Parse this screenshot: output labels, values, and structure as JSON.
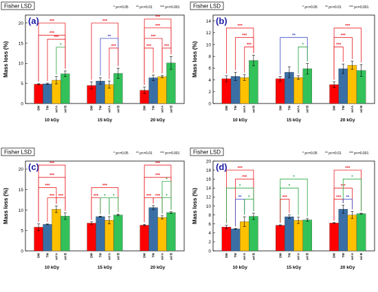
{
  "colors": {
    "DW": "#ff0000",
    "TW": "#3a6fa6",
    "sol A": "#ffc000",
    "sol B": "#33c15a",
    "red": "#e8191f",
    "blue": "#3848c8",
    "green": "#23a33a"
  },
  "legend": [
    "* p<=0.05",
    "** p<=0.01",
    "*** p<=0.001"
  ],
  "chart_data": [
    {
      "type": "bar",
      "panel_label": "(a)",
      "title": "Fisher LSD",
      "ylabel": "Mass loss (%)",
      "ylim": [
        0,
        22
      ],
      "yticks": [
        0,
        5,
        10,
        15,
        20
      ],
      "groups": [
        "10 kGy",
        "15 kGy",
        "20 kGy"
      ],
      "categories": [
        "DW",
        "TW",
        "sol A",
        "sol B"
      ],
      "values": [
        [
          4.8,
          4.9,
          5.8,
          7.4
        ],
        [
          4.5,
          5.6,
          4.7,
          7.5
        ],
        [
          3.3,
          6.4,
          6.7,
          10.1
        ]
      ],
      "errors": [
        [
          0.15,
          0.2,
          0.9,
          0.7
        ],
        [
          0.9,
          0.8,
          0.9,
          1.3
        ],
        [
          0.8,
          0.7,
          0.3,
          1.6
        ]
      ],
      "significance": [
        {
          "group": 0,
          "from": 2,
          "to": 3,
          "label": "*",
          "color": "green",
          "level": 14.0
        },
        {
          "group": 0,
          "from": 0,
          "to": 3,
          "label": "***",
          "color": "red",
          "level": 17.0
        },
        {
          "group": 0,
          "from": 1,
          "to": 3,
          "label": "***",
          "color": "red",
          "level": 16.0
        },
        {
          "group": 0,
          "from": 0,
          "to": 3,
          "label": "***",
          "color": "red",
          "level": 20.0
        },
        {
          "group": 1,
          "from": 0,
          "to": 3,
          "label": "***",
          "color": "red",
          "level": 20.0
        },
        {
          "group": 1,
          "from": 1,
          "to": 3,
          "label": "**",
          "color": "blue",
          "level": 16.2
        },
        {
          "group": 1,
          "from": 2,
          "to": 3,
          "label": "***",
          "color": "red",
          "level": 13.8
        },
        {
          "group": 2,
          "from": 0,
          "to": 3,
          "label": "***",
          "color": "red",
          "level": 21.0
        },
        {
          "group": 2,
          "from": 0,
          "to": 2,
          "label": "***",
          "color": "red",
          "level": 16.2
        },
        {
          "group": 2,
          "from": 0,
          "to": 3,
          "label": "***",
          "color": "red",
          "level": 18.8
        },
        {
          "group": 2,
          "from": 0,
          "to": 1,
          "label": "***",
          "color": "red",
          "level": 13.8
        },
        {
          "group": 2,
          "from": 2,
          "to": 3,
          "label": "***",
          "color": "red",
          "level": 13.8
        }
      ]
    },
    {
      "type": "bar",
      "panel_label": "(b)",
      "title": "Fisher LSD",
      "ylabel": "Mass loss (%)",
      "ylim": [
        0,
        15
      ],
      "yticks": [
        0,
        2,
        4,
        6,
        8,
        10,
        12,
        14
      ],
      "groups": [
        "10 kGy",
        "15 kGy",
        "20 kGy"
      ],
      "categories": [
        "DW",
        "TW",
        "sol A",
        "sol B"
      ],
      "values": [
        [
          4.2,
          4.6,
          4.4,
          7.3
        ],
        [
          4.2,
          5.3,
          4.4,
          5.9
        ],
        [
          3.2,
          5.9,
          6.5,
          5.6
        ]
      ],
      "errors": [
        [
          0.5,
          0.7,
          0.5,
          0.9
        ],
        [
          0.4,
          0.9,
          0.3,
          0.9
        ],
        [
          0.5,
          0.8,
          0.7,
          1.0
        ]
      ],
      "significance": [
        {
          "group": 0,
          "from": 0,
          "to": 3,
          "label": "***",
          "color": "red",
          "level": 12.8
        },
        {
          "group": 0,
          "from": 1,
          "to": 3,
          "label": "***",
          "color": "red",
          "level": 11.2
        },
        {
          "group": 0,
          "from": 2,
          "to": 3,
          "label": "***",
          "color": "red",
          "level": 9.6
        },
        {
          "group": 1,
          "from": 0,
          "to": 3,
          "label": "**",
          "color": "blue",
          "level": 11.2
        },
        {
          "group": 1,
          "from": 2,
          "to": 3,
          "label": "*",
          "color": "green",
          "level": 9.6
        },
        {
          "group": 2,
          "from": 0,
          "to": 3,
          "label": "***",
          "color": "red",
          "level": 12.8
        },
        {
          "group": 2,
          "from": 0,
          "to": 2,
          "label": "***",
          "color": "red",
          "level": 11.2
        },
        {
          "group": 2,
          "from": 0,
          "to": 1,
          "label": "***",
          "color": "red",
          "level": 9.6
        }
      ]
    },
    {
      "type": "bar",
      "panel_label": "(c)",
      "title": "Fisher LSD",
      "ylabel": "Mass loss (%)",
      "ylim": [
        0,
        22
      ],
      "yticks": [
        0,
        5,
        10,
        15,
        20
      ],
      "groups": [
        "10 kGy",
        "15 kGy",
        "20 kGy"
      ],
      "categories": [
        "DW",
        "TW",
        "sol A",
        "sol B"
      ],
      "values": [
        [
          5.8,
          6.5,
          10.2,
          8.5
        ],
        [
          6.8,
          8.4,
          7.5,
          8.8
        ],
        [
          6.3,
          10.6,
          8.2,
          9.4
        ]
      ],
      "errors": [
        [
          0.8,
          0.1,
          0.8,
          0.8
        ],
        [
          0.3,
          0.1,
          0.9,
          0.2
        ],
        [
          0.2,
          0.5,
          0.4,
          0.2
        ]
      ],
      "significance": [
        {
          "group": 0,
          "from": 0,
          "to": 3,
          "label": "***",
          "color": "red",
          "level": 21.0
        },
        {
          "group": 0,
          "from": 0,
          "to": 3,
          "label": "***",
          "color": "red",
          "level": 18.0
        },
        {
          "group": 0,
          "from": 0,
          "to": 2,
          "label": "***",
          "color": "red",
          "level": 15.5
        },
        {
          "group": 0,
          "from": 1,
          "to": 2,
          "label": "***",
          "color": "red",
          "level": 13.0
        },
        {
          "group": 0,
          "from": 2,
          "to": 3,
          "label": "***",
          "color": "red",
          "level": 13.0
        },
        {
          "group": 1,
          "from": 0,
          "to": 3,
          "label": "***",
          "color": "red",
          "level": 15.5
        },
        {
          "group": 1,
          "from": 0,
          "to": 1,
          "label": "***",
          "color": "red",
          "level": 13.0
        },
        {
          "group": 1,
          "from": 1,
          "to": 2,
          "label": "*",
          "color": "green",
          "level": 13.0
        },
        {
          "group": 1,
          "from": 2,
          "to": 3,
          "label": "*",
          "color": "green",
          "level": 13.0
        },
        {
          "group": 2,
          "from": 0,
          "to": 3,
          "label": "***",
          "color": "red",
          "level": 21.0
        },
        {
          "group": 2,
          "from": 0,
          "to": 3,
          "label": "***",
          "color": "red",
          "level": 18.0
        },
        {
          "group": 2,
          "from": 2,
          "to": 3,
          "label": "*",
          "color": "green",
          "level": 17.0
        },
        {
          "group": 2,
          "from": 0,
          "to": 1,
          "label": "***",
          "color": "red",
          "level": 13.0
        },
        {
          "group": 2,
          "from": 1,
          "to": 2,
          "label": "***",
          "color": "red",
          "level": 13.0
        },
        {
          "group": 2,
          "from": 2,
          "to": 3,
          "label": "*",
          "color": "green",
          "level": 13.0
        }
      ]
    },
    {
      "type": "bar",
      "panel_label": "(d)",
      "title": "Fisher LSD",
      "ylabel": "Mass loss (%)",
      "ylim": [
        0,
        20
      ],
      "yticks": [
        0,
        2,
        4,
        6,
        8,
        10,
        12,
        14,
        16,
        18,
        20
      ],
      "groups": [
        "10 kGy",
        "15 kGy",
        "20 kGy"
      ],
      "categories": [
        "DW",
        "TW",
        "sol A",
        "sol B"
      ],
      "values": [
        [
          5.3,
          4.9,
          6.5,
          7.7
        ],
        [
          5.7,
          7.6,
          6.8,
          6.9
        ],
        [
          6.2,
          9.3,
          8.0,
          8.3
        ]
      ],
      "errors": [
        [
          0.4,
          0.1,
          1.1,
          0.7
        ],
        [
          0.1,
          0.4,
          0.7,
          0.3
        ],
        [
          0.1,
          0.9,
          0.8,
          0.1
        ]
      ],
      "significance": [
        {
          "group": 0,
          "from": 0,
          "to": 3,
          "label": "***",
          "color": "red",
          "level": 18.0
        },
        {
          "group": 0,
          "from": 1,
          "to": 3,
          "label": "***",
          "color": "red",
          "level": 16.0
        },
        {
          "group": 0,
          "from": 0,
          "to": 3,
          "label": "*",
          "color": "green",
          "level": 14.0
        },
        {
          "group": 0,
          "from": 1,
          "to": 2,
          "label": "**",
          "color": "blue",
          "level": 11.5
        },
        {
          "group": 0,
          "from": 2,
          "to": 3,
          "label": "*",
          "color": "green",
          "level": 11.5
        },
        {
          "group": 1,
          "from": 0,
          "to": 3,
          "label": "*",
          "color": "green",
          "level": 16.0
        },
        {
          "group": 1,
          "from": 0,
          "to": 2,
          "label": "*",
          "color": "green",
          "level": 14.0
        },
        {
          "group": 1,
          "from": 0,
          "to": 1,
          "label": "***",
          "color": "red",
          "level": 11.5
        },
        {
          "group": 2,
          "from": 0,
          "to": 3,
          "label": "***",
          "color": "red",
          "level": 18.0
        },
        {
          "group": 2,
          "from": 0,
          "to": 2,
          "label": "***",
          "color": "red",
          "level": 14.0
        },
        {
          "group": 2,
          "from": 1,
          "to": 3,
          "label": "*",
          "color": "green",
          "level": 16.0
        },
        {
          "group": 2,
          "from": 0,
          "to": 1,
          "label": "***",
          "color": "red",
          "level": 11.5
        },
        {
          "group": 2,
          "from": 1,
          "to": 2,
          "label": "**",
          "color": "blue",
          "level": 11.5
        }
      ]
    }
  ]
}
